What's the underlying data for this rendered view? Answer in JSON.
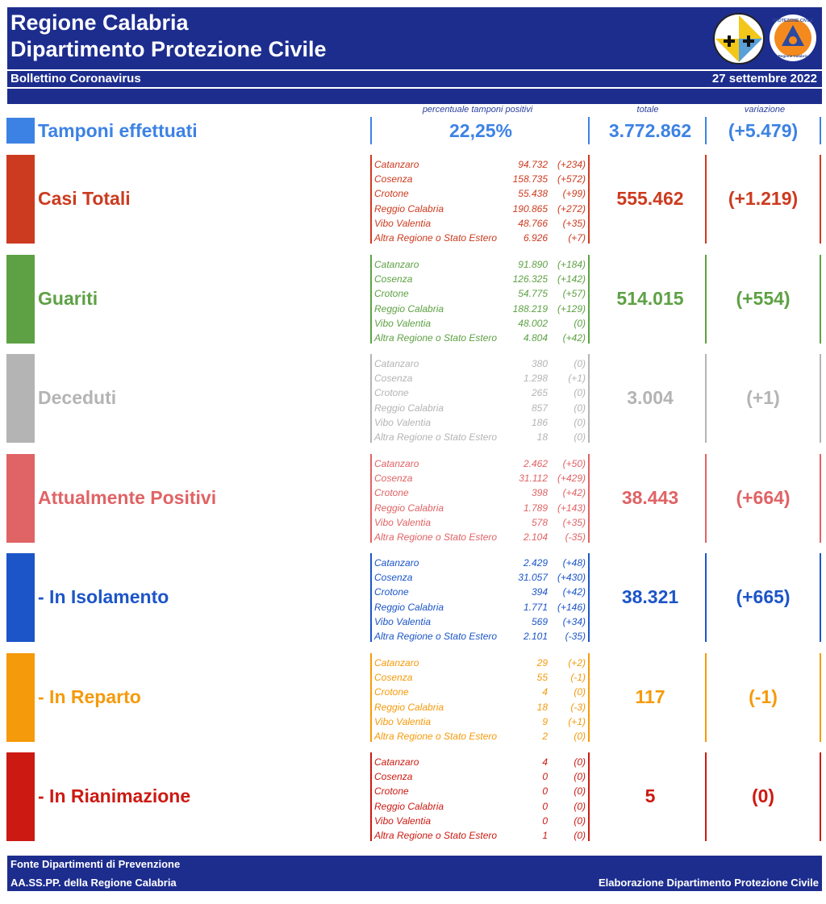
{
  "header": {
    "title_line1": "Regione Calabria",
    "title_line2": "Dipartimento Protezione Civile",
    "subtitle": "Bollettino Coronavirus",
    "date": "27 settembre 2022",
    "logo2_text_top": "PROTEZIONE CIVILE",
    "logo2_text_bottom": "Regione Calabria"
  },
  "columns": {
    "percent": "percentuale tamponi positivi",
    "total": "totale",
    "variation": "variazione"
  },
  "tamponi": {
    "label": "Tamponi effettuati",
    "percent": "22,25%",
    "total": "3.772.862",
    "variation": "(+5.479)",
    "color": "#3c82e4"
  },
  "sections": [
    {
      "id": "casi-totali",
      "label": "Casi Totali",
      "color": "#cc3b1f",
      "total": "555.462",
      "variation": "(+1.219)",
      "rows": [
        {
          "name": "Catanzaro",
          "value": "94.732",
          "delta": "(+234)"
        },
        {
          "name": "Cosenza",
          "value": "158.735",
          "delta": "(+572)"
        },
        {
          "name": "Crotone",
          "value": "55.438",
          "delta": "(+99)"
        },
        {
          "name": "Reggio Calabria",
          "value": "190.865",
          "delta": "(+272)"
        },
        {
          "name": "Vibo Valentia",
          "value": "48.766",
          "delta": "(+35)"
        },
        {
          "name": "Altra Regione o Stato Estero",
          "value": "6.926",
          "delta": "(+7)"
        }
      ]
    },
    {
      "id": "guariti",
      "label": "Guariti",
      "color": "#5ea144",
      "total": "514.015",
      "variation": "(+554)",
      "rows": [
        {
          "name": "Catanzaro",
          "value": "91.890",
          "delta": "(+184)"
        },
        {
          "name": "Cosenza",
          "value": "126.325",
          "delta": "(+142)"
        },
        {
          "name": "Crotone",
          "value": "54.775",
          "delta": "(+57)"
        },
        {
          "name": "Reggio Calabria",
          "value": "188.219",
          "delta": "(+129)"
        },
        {
          "name": "Vibo Valentia",
          "value": "48.002",
          "delta": "(0)"
        },
        {
          "name": "Altra Regione o Stato Estero",
          "value": "4.804",
          "delta": "(+42)"
        }
      ]
    },
    {
      "id": "deceduti",
      "label": "Deceduti",
      "color": "#b4b4b4",
      "total": "3.004",
      "variation": "(+1)",
      "rows": [
        {
          "name": "Catanzaro",
          "value": "380",
          "delta": "(0)"
        },
        {
          "name": "Cosenza",
          "value": "1.298",
          "delta": "(+1)"
        },
        {
          "name": "Crotone",
          "value": "265",
          "delta": "(0)"
        },
        {
          "name": "Reggio Calabria",
          "value": "857",
          "delta": "(0)"
        },
        {
          "name": "Vibo Valentia",
          "value": "186",
          "delta": "(0)"
        },
        {
          "name": "Altra Regione o Stato Estero",
          "value": "18",
          "delta": "(0)"
        }
      ]
    },
    {
      "id": "attualmente-positivi",
      "label": "Attualmente Positivi",
      "color": "#e06365",
      "total": "38.443",
      "variation": "(+664)",
      "rows": [
        {
          "name": "Catanzaro",
          "value": "2.462",
          "delta": "(+50)"
        },
        {
          "name": "Cosenza",
          "value": "31.112",
          "delta": "(+429)"
        },
        {
          "name": "Crotone",
          "value": "398",
          "delta": "(+42)"
        },
        {
          "name": "Reggio Calabria",
          "value": "1.789",
          "delta": "(+143)"
        },
        {
          "name": "Vibo Valentia",
          "value": "578",
          "delta": "(+35)"
        },
        {
          "name": "Altra Regione o Stato Estero",
          "value": "2.104",
          "delta": "(-35)"
        }
      ]
    },
    {
      "id": "in-isolamento",
      "label": " - In Isolamento",
      "color": "#1c55c8",
      "total": "38.321",
      "variation": "(+665)",
      "rows": [
        {
          "name": "Catanzaro",
          "value": "2.429",
          "delta": "(+48)"
        },
        {
          "name": "Cosenza",
          "value": "31.057",
          "delta": "(+430)"
        },
        {
          "name": "Crotone",
          "value": "394",
          "delta": "(+42)"
        },
        {
          "name": "Reggio Calabria",
          "value": "1.771",
          "delta": "(+146)"
        },
        {
          "name": "Vibo Valentia",
          "value": "569",
          "delta": "(+34)"
        },
        {
          "name": "Altra Regione o Stato Estero",
          "value": "2.101",
          "delta": "(-35)"
        }
      ]
    },
    {
      "id": "in-reparto",
      "label": " - In Reparto",
      "color": "#f59a0b",
      "total": "117",
      "variation": "(-1)",
      "rows": [
        {
          "name": "Catanzaro",
          "value": "29",
          "delta": "(+2)"
        },
        {
          "name": "Cosenza",
          "value": "55",
          "delta": "(-1)"
        },
        {
          "name": "Crotone",
          "value": "4",
          "delta": "(0)"
        },
        {
          "name": "Reggio Calabria",
          "value": "18",
          "delta": "(-3)"
        },
        {
          "name": "Vibo Valentia",
          "value": "9",
          "delta": "(+1)"
        },
        {
          "name": "Altra Regione o Stato Estero",
          "value": "2",
          "delta": "(0)"
        }
      ]
    },
    {
      "id": "in-rianimazione",
      "label": " - In Rianimazione",
      "color": "#cc1a12",
      "total": "5",
      "variation": "(0)",
      "rows": [
        {
          "name": "Catanzaro",
          "value": "4",
          "delta": "(0)"
        },
        {
          "name": "Cosenza",
          "value": "0",
          "delta": "(0)"
        },
        {
          "name": "Crotone",
          "value": "0",
          "delta": "(0)"
        },
        {
          "name": "Reggio Calabria",
          "value": "0",
          "delta": "(0)"
        },
        {
          "name": "Vibo Valentia",
          "value": "0",
          "delta": "(0)"
        },
        {
          "name": "Altra Regione o Stato Estero",
          "value": "1",
          "delta": "(0)"
        }
      ]
    }
  ],
  "footer": {
    "line1": "Fonte Dipartimenti di Prevenzione",
    "line2": "AA.SS.PP.  della Regione Calabria",
    "right": "Elaborazione Dipartimento Protezione Civile"
  }
}
